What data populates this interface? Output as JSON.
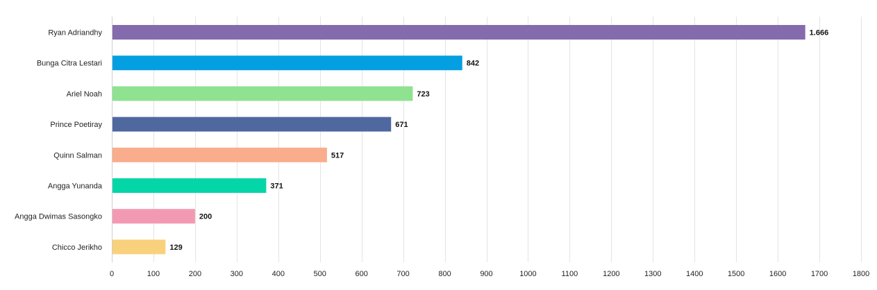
{
  "chart_data": {
    "type": "bar",
    "orientation": "horizontal",
    "title": "",
    "xlabel": "",
    "ylabel": "",
    "xlim": [
      0,
      1800
    ],
    "x_ticks": [
      0,
      100,
      200,
      300,
      400,
      500,
      600,
      700,
      800,
      900,
      1000,
      1100,
      1200,
      1300,
      1400,
      1500,
      1600,
      1700,
      1800
    ],
    "grid": true,
    "legend": "none",
    "categories": [
      "Ryan Adriandhy",
      "Bunga Citra Lestari",
      "Ariel Noah",
      "Prince Poetiray",
      "Quinn Salman",
      "Angga Yunanda",
      "Angga Dwimas Sasongko",
      "Chicco Jerikho"
    ],
    "values": [
      1666,
      842,
      723,
      671,
      517,
      371,
      200,
      129
    ],
    "data_labels": [
      "1.666",
      "842",
      "723",
      "671",
      "517",
      "371",
      "200",
      "129"
    ],
    "colors": [
      "#846bad",
      "#049fe0",
      "#8ee290",
      "#5068a0",
      "#f9ad8c",
      "#05d6a8",
      "#f39ab3",
      "#f9d17c"
    ]
  }
}
